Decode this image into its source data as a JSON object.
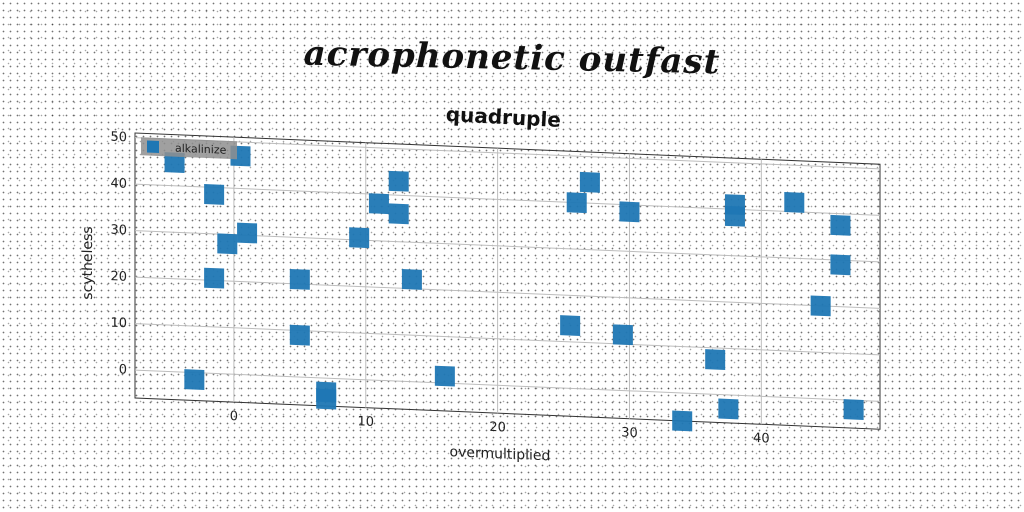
{
  "figure": {
    "suptitle": "acrophonetic outfast"
  },
  "chart_data": {
    "type": "scatter",
    "title": "quadruple",
    "xlabel": "overmultiplied",
    "ylabel": "scytheless",
    "xlim": [
      -7.5,
      49
    ],
    "ylim": [
      -6,
      51
    ],
    "xticks": [
      0,
      10,
      20,
      30,
      40
    ],
    "yticks": [
      0,
      10,
      20,
      30,
      40,
      50
    ],
    "grid": true,
    "legend_position": "top-left",
    "marker": "square",
    "color": "#1f77b4",
    "series": [
      {
        "name": "alkalinize",
        "points": [
          [
            -4.5,
            45
          ],
          [
            0.5,
            47
          ],
          [
            -1.5,
            38.5
          ],
          [
            -0.5,
            28
          ],
          [
            1,
            30.5
          ],
          [
            -1.5,
            20.5
          ],
          [
            -3,
            -1.5
          ],
          [
            5,
            21
          ],
          [
            5,
            9
          ],
          [
            7,
            -3
          ],
          [
            7,
            -4.5
          ],
          [
            9.5,
            30.5
          ],
          [
            11,
            38
          ],
          [
            12.5,
            43
          ],
          [
            12.5,
            36
          ],
          [
            13.5,
            22
          ],
          [
            16,
            1.5
          ],
          [
            25.5,
            13.5
          ],
          [
            26,
            40
          ],
          [
            27,
            44.5
          ],
          [
            29.5,
            12
          ],
          [
            30,
            38.5
          ],
          [
            34,
            -6
          ],
          [
            36.5,
            7.5
          ],
          [
            37.5,
            -3
          ],
          [
            38,
            41
          ],
          [
            38,
            38.5
          ],
          [
            42.5,
            42
          ],
          [
            44.5,
            20
          ],
          [
            46,
            37.5
          ],
          [
            46,
            29
          ],
          [
            47,
            -2
          ]
        ]
      }
    ]
  }
}
